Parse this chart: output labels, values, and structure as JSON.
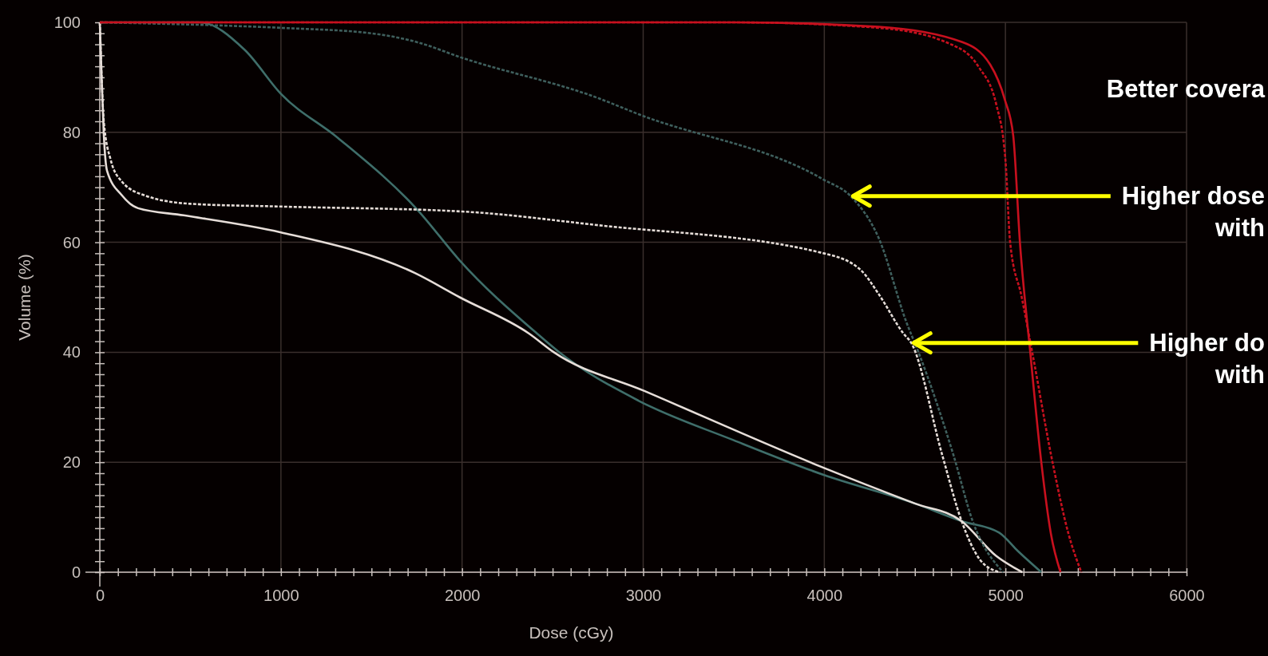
{
  "chart_data": {
    "type": "line",
    "xlabel": "Dose (cGy)",
    "ylabel": "Volume (%)",
    "xlim": [
      0,
      6000
    ],
    "ylim": [
      0,
      100
    ],
    "grid": true,
    "xticks": [
      0,
      {
        "value": 100,
        "label": null
      },
      {
        "value": 200,
        "label": null
      },
      {
        "value": 300,
        "label": null
      },
      {
        "value": 400,
        "label": null
      },
      {
        "value": 500,
        "label": null
      },
      {
        "value": 600,
        "label": null
      },
      {
        "value": 700,
        "label": null
      },
      {
        "value": 800,
        "label": null
      },
      {
        "value": 900,
        "label": null
      },
      1000,
      {
        "value": 1100,
        "label": null
      },
      {
        "value": 1200,
        "label": null
      },
      {
        "value": 1300,
        "label": null
      },
      {
        "value": 1400,
        "label": null
      },
      {
        "value": 1500,
        "label": null
      },
      {
        "value": 1600,
        "label": null
      },
      {
        "value": 1700,
        "label": null
      },
      {
        "value": 1800,
        "label": null
      },
      {
        "value": 1900,
        "label": null
      },
      2000,
      {
        "value": 2100,
        "label": null
      },
      {
        "value": 2200,
        "label": null
      },
      {
        "value": 2300,
        "label": null
      },
      {
        "value": 2400,
        "label": null
      },
      {
        "value": 2500,
        "label": null
      },
      {
        "value": 2600,
        "label": null
      },
      {
        "value": 2700,
        "label": null
      },
      {
        "value": 2800,
        "label": null
      },
      {
        "value": 2900,
        "label": null
      },
      3000,
      {
        "value": 3100,
        "label": null
      },
      {
        "value": 3200,
        "label": null
      },
      {
        "value": 3300,
        "label": null
      },
      {
        "value": 3400,
        "label": null
      },
      {
        "value": 3500,
        "label": null
      },
      {
        "value": 3600,
        "label": null
      },
      {
        "value": 3700,
        "label": null
      },
      {
        "value": 3800,
        "label": null
      },
      {
        "value": 3900,
        "label": null
      },
      4000,
      {
        "value": 4100,
        "label": null
      },
      {
        "value": 4200,
        "label": null
      },
      {
        "value": 4300,
        "label": null
      },
      {
        "value": 4400,
        "label": null
      },
      {
        "value": 4500,
        "label": null
      },
      {
        "value": 4600,
        "label": null
      },
      {
        "value": 4700,
        "label": null
      },
      {
        "value": 4800,
        "label": null
      },
      {
        "value": 4900,
        "label": null
      },
      5000,
      {
        "value": 5100,
        "label": null
      },
      {
        "value": 5200,
        "label": null
      },
      {
        "value": 5300,
        "label": null
      },
      {
        "value": 5400,
        "label": null
      },
      {
        "value": 5500,
        "label": null
      },
      {
        "value": 5600,
        "label": null
      },
      {
        "value": 5700,
        "label": null
      },
      {
        "value": 5800,
        "label": null
      },
      {
        "value": 5900,
        "label": null
      },
      6000
    ],
    "yticks": [
      0,
      {
        "value": 2,
        "label": null
      },
      {
        "value": 4,
        "label": null
      },
      {
        "value": 6,
        "label": null
      },
      {
        "value": 8,
        "label": null
      },
      {
        "value": 10,
        "label": null
      },
      {
        "value": 12,
        "label": null
      },
      {
        "value": 14,
        "label": null
      },
      {
        "value": 16,
        "label": null
      },
      {
        "value": 18,
        "label": null
      },
      20,
      {
        "value": 22,
        "label": null
      },
      {
        "value": 24,
        "label": null
      },
      {
        "value": 26,
        "label": null
      },
      {
        "value": 28,
        "label": null
      },
      {
        "value": 30,
        "label": null
      },
      {
        "value": 32,
        "label": null
      },
      {
        "value": 34,
        "label": null
      },
      {
        "value": 36,
        "label": null
      },
      {
        "value": 38,
        "label": null
      },
      40,
      {
        "value": 42,
        "label": null
      },
      {
        "value": 44,
        "label": null
      },
      {
        "value": 46,
        "label": null
      },
      {
        "value": 48,
        "label": null
      },
      {
        "value": 50,
        "label": null
      },
      {
        "value": 52,
        "label": null
      },
      {
        "value": 54,
        "label": null
      },
      {
        "value": 56,
        "label": null
      },
      {
        "value": 58,
        "label": null
      },
      60,
      {
        "value": 62,
        "label": null
      },
      {
        "value": 64,
        "label": null
      },
      {
        "value": 66,
        "label": null
      },
      {
        "value": 68,
        "label": null
      },
      {
        "value": 70,
        "label": null
      },
      {
        "value": 72,
        "label": null
      },
      {
        "value": 74,
        "label": null
      },
      {
        "value": 76,
        "label": null
      },
      {
        "value": 78,
        "label": null
      },
      80,
      {
        "value": 82,
        "label": null
      },
      {
        "value": 84,
        "label": null
      },
      {
        "value": 86,
        "label": null
      },
      {
        "value": 88,
        "label": null
      },
      {
        "value": 90,
        "label": null
      },
      {
        "value": 92,
        "label": null
      },
      {
        "value": 94,
        "label": null
      },
      {
        "value": 96,
        "label": null
      },
      {
        "value": 98,
        "label": null
      },
      100
    ],
    "series": [
      {
        "color": "#3f6e6a",
        "line_style": "solid",
        "x": [
          0,
          551,
          800,
          1000,
          1314,
          1762,
          1987,
          2414,
          2529,
          2974,
          3500,
          3996,
          4500,
          4758,
          4965,
          5070,
          5198
        ],
        "values": [
          100,
          100,
          95,
          87,
          79,
          65.6,
          56.7,
          43.4,
          40.2,
          31.2,
          24,
          17.7,
          12.5,
          9.3,
          7.2,
          3.8,
          0
        ]
      },
      {
        "color": "#e6ddd8",
        "line_style": "solid",
        "x": [
          0,
          10,
          22,
          40,
          123,
          211,
          463,
          1000,
          1740,
          1987,
          2370,
          2507,
          3004,
          3996,
          4500,
          4758,
          4947,
          5093
        ],
        "values": [
          100,
          90,
          79.7,
          73,
          68.5,
          66.2,
          64.9,
          61.8,
          54.4,
          50,
          43.4,
          40,
          33,
          19,
          12.5,
          9.3,
          3,
          0
        ]
      },
      {
        "color": "#e6ddd8",
        "line_style": "dashed",
        "x": [
          0,
          22,
          60,
          123,
          250,
          500,
          1000,
          2000,
          2753,
          3996,
          4200,
          4300,
          4437,
          4480,
          4652,
          4758,
          4859,
          4965
        ],
        "values": [
          100,
          82,
          75,
          71,
          68.5,
          67,
          66.5,
          65.6,
          63.1,
          58,
          55,
          50.6,
          43.4,
          41.7,
          21.2,
          9.3,
          2.3,
          0
        ]
      },
      {
        "color": "#3f5f5d",
        "line_style": "dashed",
        "x": [
          0,
          600,
          1000,
          1500,
          1762,
          1987,
          2753,
          2974,
          3996,
          4145,
          4300,
          4454,
          4520,
          4714,
          4819,
          4987
        ],
        "values": [
          100,
          99.5,
          99,
          98,
          96.3,
          93.7,
          86.2,
          83.3,
          71.4,
          68.4,
          60.8,
          45.4,
          40,
          21.2,
          9.3,
          0
        ]
      },
      {
        "color": "#c8101e",
        "line_style": "dashed",
        "x": [
          0,
          3500,
          4300,
          4700,
          4850,
          4950,
          5000,
          5026,
          5090,
          5148,
          5260,
          5348,
          5419
        ],
        "values": [
          100,
          100,
          99,
          96,
          92,
          85,
          75,
          60,
          50,
          40,
          20,
          7,
          0
        ]
      },
      {
        "color": "#c8101e",
        "line_style": "solid",
        "x": [
          0,
          3500,
          4300,
          4762,
          4916,
          4996,
          5043,
          5080,
          5137,
          5198,
          5251,
          5304
        ],
        "values": [
          100,
          100,
          99.2,
          96.4,
          92.3,
          86,
          79.4,
          60,
          40,
          20,
          7,
          0
        ]
      }
    ],
    "annotations": [
      "Better covera",
      {
        "text": "Higher dose\nwith",
        "x": 4145,
        "y": 68.4
      },
      {
        "text": "Higher do\nwith",
        "x": 4480,
        "y": 41.7
      }
    ]
  }
}
